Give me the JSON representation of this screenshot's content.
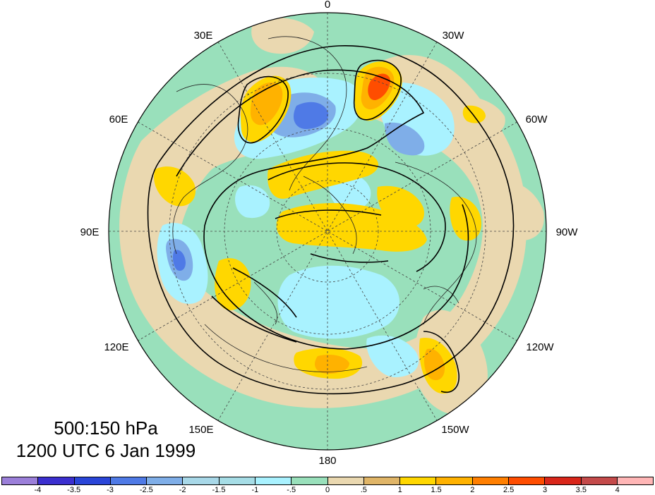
{
  "map": {
    "projection": "north polar stereographic",
    "longitude_labels": [
      "0",
      "30W",
      "60W",
      "90W",
      "120W",
      "150W",
      "180",
      "150E",
      "120E",
      "90E",
      "60E",
      "30E"
    ],
    "colors": {
      "ocean_fill": "#99e0bb",
      "coastline": "#222222",
      "contour": "#000000"
    }
  },
  "caption": {
    "levels": "500:150 hPa",
    "datetime": "1200 UTC 6 Jan 1999"
  },
  "colorbar": {
    "colors": [
      "#9b7fd9",
      "#3b2fcf",
      "#2a45d8",
      "#4f7ae6",
      "#7faee8",
      "#a8d8e8",
      "#a6dde6",
      "#a9f2ff",
      "#99e0bb",
      "#ead8b0",
      "#e0b567",
      "#ffd700",
      "#ffb200",
      "#ff7f00",
      "#ff4d00",
      "#d9261a",
      "#c44a4a",
      "#ffb6b6"
    ],
    "tick_labels": [
      "-4",
      "-3.5",
      "-3",
      "-2.5",
      "-2",
      "-1.5",
      "-1",
      "-.5",
      "0",
      ".5",
      "1",
      "1.5",
      "2",
      "2.5",
      "3",
      "3.5",
      "4"
    ]
  }
}
